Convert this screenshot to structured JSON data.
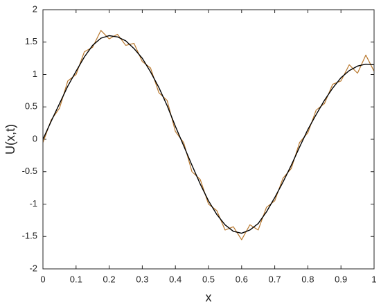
{
  "chart_data": {
    "type": "line",
    "xlabel": "x",
    "ylabel": "U(x,t)",
    "x": [
      0,
      0.025,
      0.05,
      0.075,
      0.1,
      0.125,
      0.15,
      0.175,
      0.2,
      0.225,
      0.25,
      0.275,
      0.3,
      0.325,
      0.35,
      0.375,
      0.4,
      0.425,
      0.45,
      0.475,
      0.5,
      0.525,
      0.55,
      0.575,
      0.6,
      0.625,
      0.65,
      0.675,
      0.7,
      0.725,
      0.75,
      0.775,
      0.8,
      0.825,
      0.85,
      0.875,
      0.9,
      0.925,
      0.95,
      0.975,
      1.0
    ],
    "series": [
      {
        "color": "#b8772c",
        "values": [
          -0.05,
          0.3,
          0.48,
          0.9,
          1.0,
          1.35,
          1.42,
          1.68,
          1.55,
          1.62,
          1.45,
          1.48,
          1.2,
          1.1,
          0.72,
          0.6,
          0.12,
          -0.05,
          -0.5,
          -0.62,
          -1.0,
          -1.1,
          -1.4,
          -1.35,
          -1.55,
          -1.32,
          -1.4,
          -1.05,
          -0.95,
          -0.6,
          -0.45,
          -0.05,
          0.1,
          0.45,
          0.55,
          0.85,
          0.9,
          1.15,
          1.02,
          1.3,
          1.05
        ]
      },
      {
        "color": "#000000",
        "values": [
          0,
          0.28,
          0.55,
          0.82,
          1.05,
          1.27,
          1.45,
          1.56,
          1.6,
          1.58,
          1.52,
          1.4,
          1.25,
          1.04,
          0.8,
          0.52,
          0.2,
          -0.1,
          -0.4,
          -0.69,
          -0.95,
          -1.16,
          -1.32,
          -1.42,
          -1.45,
          -1.4,
          -1.3,
          -1.12,
          -0.9,
          -0.66,
          -0.4,
          -0.12,
          0.15,
          0.38,
          0.6,
          0.79,
          0.95,
          1.06,
          1.13,
          1.16,
          1.15
        ]
      }
    ],
    "xlim": [
      0,
      1
    ],
    "xticks": [
      0,
      0.1,
      0.2,
      0.3,
      0.4,
      0.5,
      0.6,
      0.7,
      0.8,
      0.9,
      1
    ],
    "ylim": [
      -2,
      2
    ],
    "yticks": [
      -2,
      -1.5,
      -1,
      -0.5,
      0,
      0.5,
      1,
      1.5,
      2
    ],
    "grid": false
  }
}
